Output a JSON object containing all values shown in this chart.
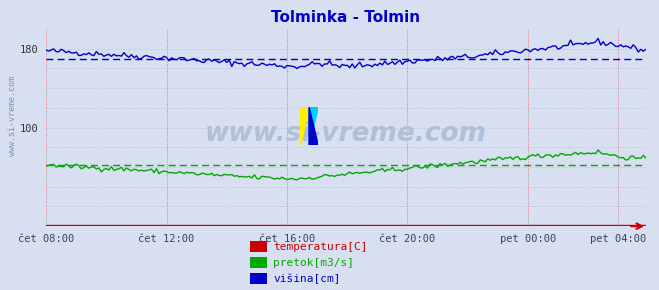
{
  "title": "Tolminka - Tolmin",
  "title_color": "#0000cc",
  "bg_color": "#d8dff0",
  "plot_bg_color": "#d8dff0",
  "ylim": [
    0,
    200
  ],
  "ytick_vals": [
    20,
    40,
    60,
    80,
    100,
    120,
    140,
    160,
    180
  ],
  "ytick_labels_show": [
    180,
    100
  ],
  "xtick_labels": [
    "čet 08:00",
    "čet 12:00",
    "čet 16:00",
    "čet 20:00",
    "pet 00:00",
    "pet 04:00"
  ],
  "watermark": "www.si-vreme.com",
  "watermark_color": "#b0c0d8",
  "side_label": "www.si-vreme.com",
  "side_label_color": "#6688aa",
  "legend": [
    {
      "label": "temperatura[C]",
      "color": "#cc0000"
    },
    {
      "label": "pretok[m3/s]",
      "color": "#00aa00"
    },
    {
      "label": "višina[cm]",
      "color": "#0000cc"
    }
  ],
  "avg_blue": 170,
  "avg_green": 62,
  "line_color_blue": "#0000cc",
  "line_color_green": "#00aa00",
  "line_color_red": "#cc0000",
  "grid_v_color": "#cc6666",
  "grid_h_color": "#bbbbcc",
  "n_points": 240,
  "arrow_color": "#cc0000"
}
